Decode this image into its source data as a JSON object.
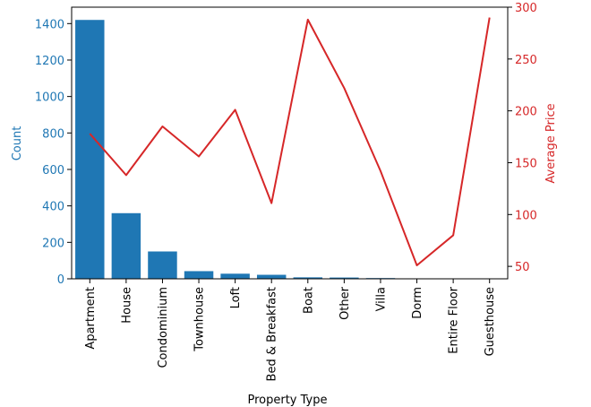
{
  "chart_data": {
    "type": "bar+line",
    "xlabel": "Property Type",
    "categories": [
      "Apartment",
      "House",
      "Condominium",
      "Townhouse",
      "Loft",
      "Bed & Breakfast",
      "Boat",
      "Other",
      "Villa",
      "Dorm",
      "Entire Floor",
      "Guesthouse"
    ],
    "series": [
      {
        "name": "Count",
        "type": "bar",
        "axis": "left",
        "color": "#1f77b4",
        "values": [
          1420,
          360,
          150,
          42,
          28,
          22,
          8,
          7,
          4,
          2,
          2,
          2
        ]
      },
      {
        "name": "Average Price",
        "type": "line",
        "axis": "right",
        "color": "#d62728",
        "values": [
          178,
          138,
          185,
          156,
          201,
          111,
          288,
          222,
          142,
          51,
          80,
          290
        ]
      }
    ],
    "y_left": {
      "label": "Count",
      "ylim": [
        0,
        1490
      ],
      "ticks": [
        0,
        200,
        400,
        600,
        800,
        1000,
        1200,
        1400
      ],
      "color": "#1f77b4"
    },
    "y_right": {
      "label": "Average Price",
      "ylim": [
        38,
        300
      ],
      "ticks": [
        50,
        100,
        150,
        200,
        250,
        300
      ],
      "color": "#d62728"
    },
    "grid": false,
    "legend": "none"
  }
}
